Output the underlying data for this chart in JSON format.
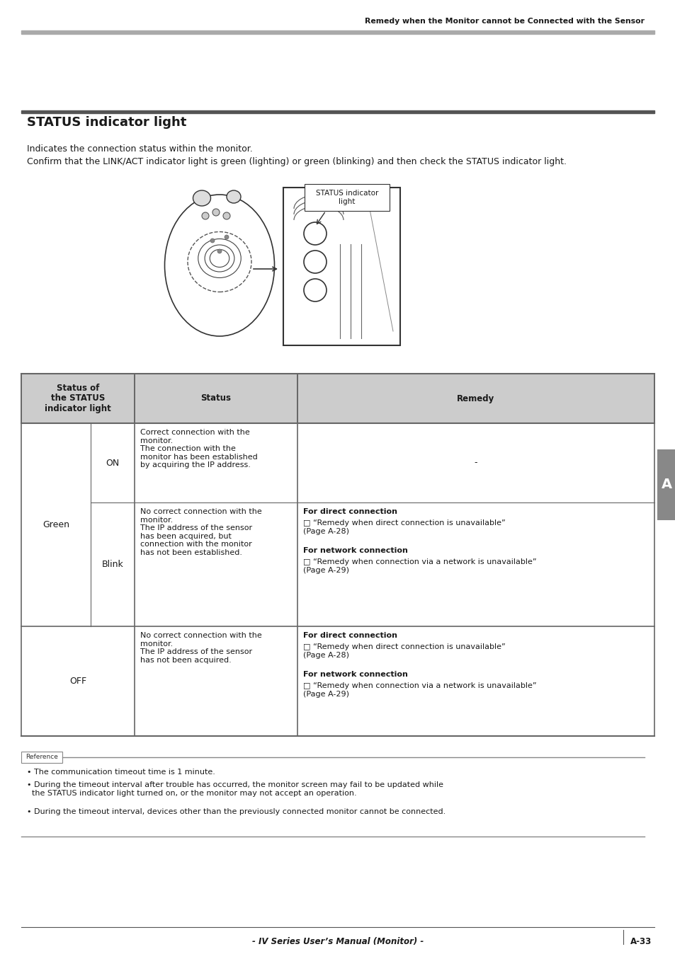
{
  "header_text": "Remedy when the Monitor cannot be Connected with the Sensor",
  "title": "STATUS indicator light",
  "intro_line1": "Indicates the connection status within the monitor.",
  "intro_line2": "Confirm that the LINK/ACT indicator light is green (lighting) or green (blinking) and then check the STATUS indicator light.",
  "image_label": "STATUS indicator\nlight",
  "table_col0_header": "Status of\nthe STATUS\nindicator light",
  "table_col1_header": "Status",
  "table_col2_header": "Remedy",
  "ref_label": "Reference",
  "ref_bullet1": "The communication timeout time is 1 minute.",
  "ref_bullet2": "During the timeout interval after trouble has occurred, the monitor screen may fail to be updated while\n  the STATUS indicator light turned on, or the monitor may not accept an operation.",
  "ref_bullet3": "During the timeout interval, devices other than the previously connected monitor cannot be connected.",
  "footer_center": "- IV Series User’s Manual (Monitor) -",
  "footer_right": "A-33",
  "sidebar_label": "A",
  "bg": "#ffffff",
  "header_bar_color": "#aaaaaa",
  "table_header_bg": "#cccccc",
  "table_border": "#666666",
  "sidebar_bg": "#888888",
  "text_color": "#1a1a1a",
  "bold_color": "#1a1a1a"
}
